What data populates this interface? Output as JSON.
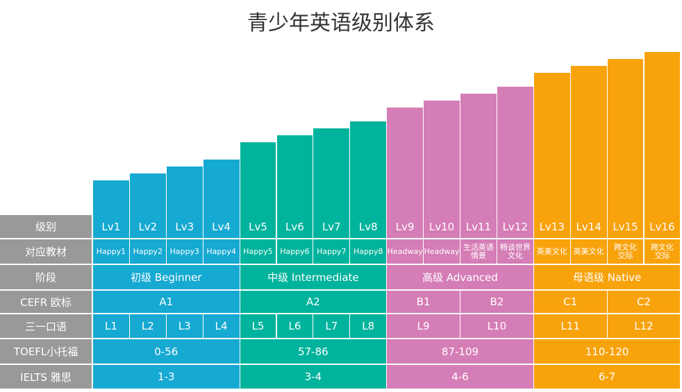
{
  "title": "青少年英语级别体系",
  "group_colors": [
    "#16a9d2",
    "#00b39c",
    "#d57db6",
    "#f8a20c"
  ],
  "row_labels": [
    "级别",
    "对应教材",
    "阶段",
    "CEFR 欧标",
    "三一口语",
    "TOEFL小托福",
    "IELTS 雅思"
  ],
  "levels": [
    "Lv1",
    "Lv2",
    "Lv3",
    "Lv4",
    "Lv5",
    "Lv6",
    "Lv7",
    "Lv8",
    "Lv9",
    "Lv10",
    "Lv11",
    "Lv12",
    "Lv13",
    "Lv14",
    "Lv15",
    "Lv16"
  ],
  "textbooks": [
    "Happy1",
    "Happy2",
    "Happy3",
    "Happy4",
    "Happy5",
    "Happy6",
    "Happy7",
    "Happy8",
    "Headway",
    "Headway",
    "生活英语\n情景",
    "畅谈世界\n文化",
    "英美文化",
    "英美文化",
    "跨文化\n交际",
    "跨文化\n交际"
  ],
  "stages": [
    "初级 Beginner",
    "中级 Intermediate",
    "高级 Advanced",
    "母语级 Native"
  ],
  "cefr": [
    "A1",
    "A2",
    "B1",
    "B2",
    "C1",
    "C2"
  ],
  "trinity": [
    "L1",
    "L2",
    "L3",
    "L4",
    "L5",
    "L6",
    "L7",
    "L8",
    "L9",
    "L10",
    "L11",
    "L12"
  ],
  "toefl": [
    "0-56",
    "57-86",
    "87-109",
    "110-120"
  ],
  "ielts": [
    "1-3",
    "3-4",
    "4-6",
    "6-7"
  ]
}
